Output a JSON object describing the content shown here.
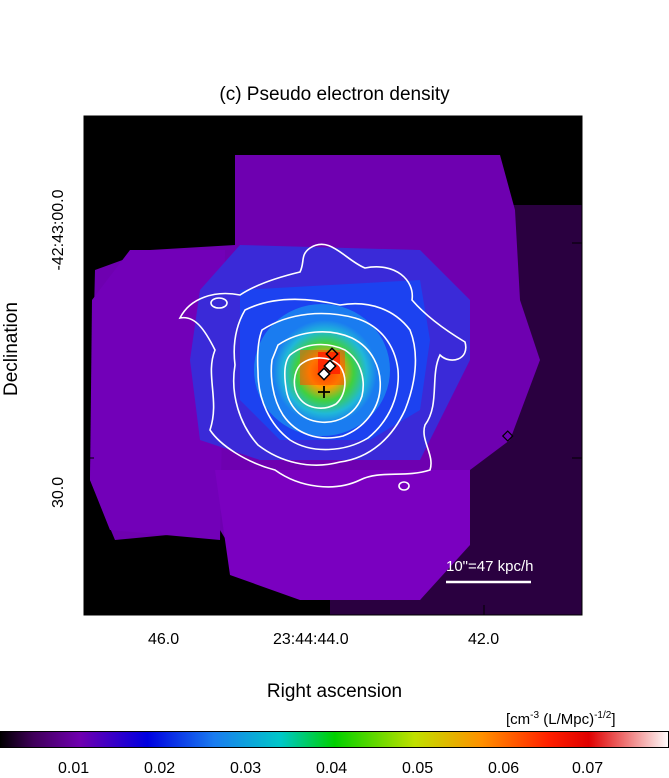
{
  "figure": {
    "title": "(c) Pseudo electron density",
    "xlabel": "Right ascension",
    "ylabel": "Declination",
    "x_ticks": [
      "46.0",
      "23:44:44.0",
      "42.0"
    ],
    "y_ticks": [
      "-42:43:00.0",
      "30.0"
    ],
    "scale_bar_label": "10\"=47 kpc/h",
    "colorbar_unit": "[cm-3 (L/Mpc)-1/2]",
    "colorbar_unit_parts": {
      "a": "[cm",
      "b": "-3",
      "c": " (L/Mpc)",
      "d": "-1/2",
      "e": "]"
    },
    "colorbar_ticks": [
      "0.01",
      "0.02",
      "0.03",
      "0.04",
      "0.05",
      "0.06",
      "0.07"
    ],
    "colors": {
      "background_map": "#000000",
      "outer_region": "#7000b0",
      "mid_region": "#3a2ad8",
      "inner_region": "#1a7cf0",
      "core_green": "#30c040",
      "peak_red": "#e02000",
      "contour": "#ffffff"
    }
  },
  "chart_data": {
    "type": "heatmap",
    "title": "(c) Pseudo electron density",
    "xlabel": "Right ascension",
    "ylabel": "Declination",
    "x_tick_labels": [
      "46.0",
      "23:44:44.0",
      "42.0"
    ],
    "y_tick_labels": [
      "-42:43:00.0",
      "30.0"
    ],
    "colorbar": {
      "label": "[cm-3 (L/Mpc)-1/2]",
      "ticks": [
        0.01,
        0.02,
        0.03,
        0.04,
        0.05,
        0.06,
        0.07
      ],
      "range": [
        0.0,
        0.078
      ]
    },
    "annotations": [
      "10\"=47 kpc/h"
    ],
    "overlays": [
      "white contours",
      "diamond markers",
      "cross marker"
    ]
  }
}
